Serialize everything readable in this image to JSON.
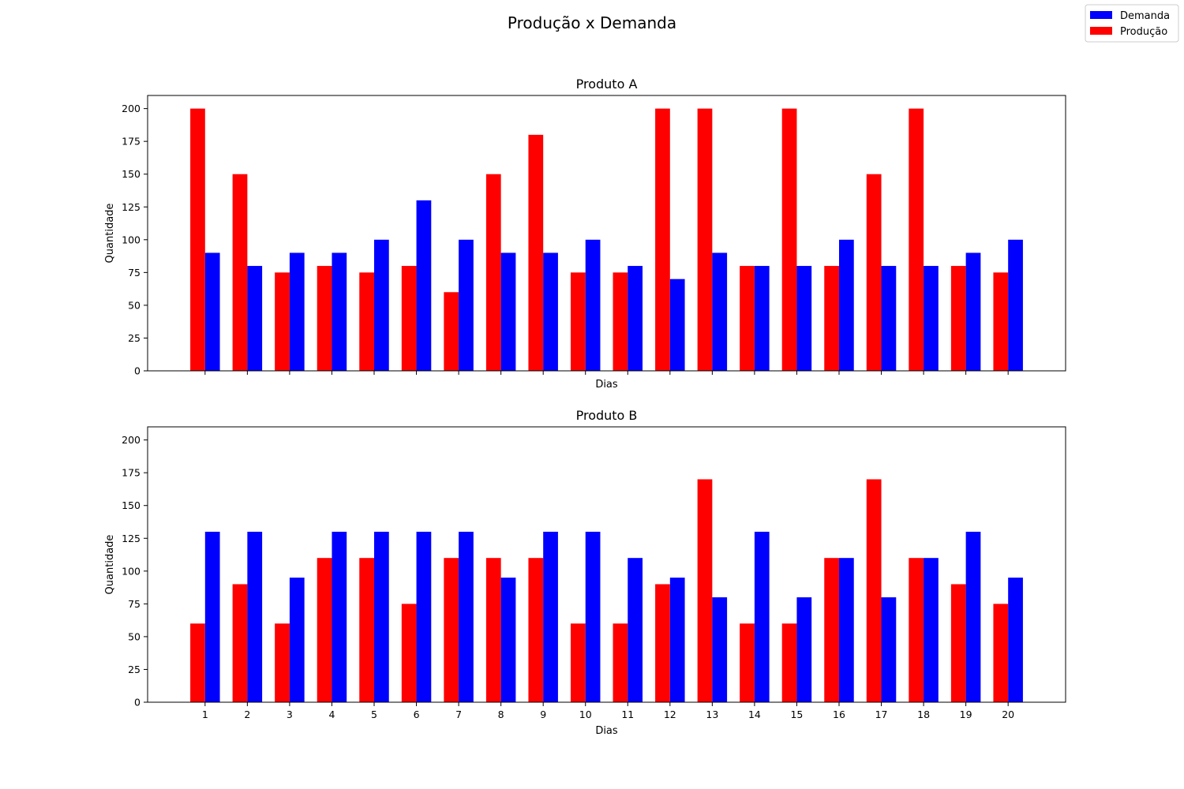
{
  "suptitle": "Produção x Demanda",
  "legend": {
    "placement": "top-right",
    "entries": [
      {
        "name": "Demanda",
        "color": "#0000ff"
      },
      {
        "name": "Produção",
        "color": "#ff0000"
      }
    ]
  },
  "chart_data": [
    {
      "type": "bar",
      "title": "Produto A",
      "xlabel": "Dias",
      "ylabel": "Quantidade",
      "ylim": [
        0,
        210
      ],
      "yticks": [
        0,
        25,
        50,
        75,
        100,
        125,
        150,
        175,
        200
      ],
      "show_xticklabels": false,
      "categories": [
        "1",
        "2",
        "3",
        "4",
        "5",
        "6",
        "7",
        "8",
        "9",
        "10",
        "11",
        "12",
        "13",
        "14",
        "15",
        "16",
        "17",
        "18",
        "19",
        "20"
      ],
      "series": [
        {
          "name": "Produção",
          "color": "#ff0000",
          "values": [
            200,
            150,
            75,
            80,
            75,
            80,
            60,
            150,
            180,
            75,
            75,
            200,
            200,
            80,
            200,
            80,
            150,
            200,
            80,
            75
          ]
        },
        {
          "name": "Demanda",
          "color": "#0000ff",
          "values": [
            90,
            80,
            90,
            90,
            100,
            130,
            100,
            90,
            90,
            100,
            80,
            70,
            90,
            80,
            80,
            100,
            80,
            80,
            90,
            100
          ]
        }
      ]
    },
    {
      "type": "bar",
      "title": "Produto B",
      "xlabel": "Dias",
      "ylabel": "Quantidade",
      "ylim": [
        0,
        210
      ],
      "yticks": [
        0,
        25,
        50,
        75,
        100,
        125,
        150,
        175,
        200
      ],
      "show_xticklabels": true,
      "categories": [
        "1",
        "2",
        "3",
        "4",
        "5",
        "6",
        "7",
        "8",
        "9",
        "10",
        "11",
        "12",
        "13",
        "14",
        "15",
        "16",
        "17",
        "18",
        "19",
        "20"
      ],
      "series": [
        {
          "name": "Produção",
          "color": "#ff0000",
          "values": [
            60,
            90,
            60,
            110,
            110,
            75,
            110,
            110,
            110,
            60,
            60,
            90,
            170,
            60,
            60,
            110,
            170,
            110,
            90,
            75
          ]
        },
        {
          "name": "Demanda",
          "color": "#0000ff",
          "values": [
            130,
            130,
            95,
            130,
            130,
            130,
            130,
            95,
            130,
            130,
            110,
            95,
            80,
            130,
            80,
            110,
            80,
            110,
            130,
            95
          ]
        }
      ]
    }
  ]
}
